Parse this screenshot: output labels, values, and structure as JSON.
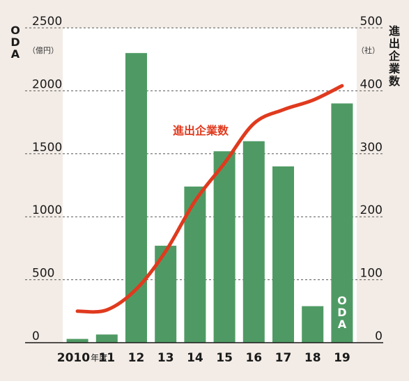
{
  "chart_data": {
    "type": "bar",
    "categories": [
      "2010",
      "11",
      "12",
      "13",
      "14",
      "15",
      "16",
      "17",
      "18",
      "19"
    ],
    "first_category_suffix": "年度",
    "series": [
      {
        "name": "ODA",
        "type": "bar",
        "axis": "left",
        "color": "#4f9a64",
        "values": [
          30,
          65,
          2300,
          770,
          1240,
          1520,
          1600,
          1400,
          290,
          1900
        ]
      },
      {
        "name": "進出企業数",
        "type": "line",
        "axis": "right",
        "color": "#e03a1e",
        "values": [
          50,
          52,
          85,
          145,
          225,
          285,
          348,
          370,
          385,
          408
        ]
      }
    ],
    "left_axis": {
      "label": "ODA",
      "unit": "（億円）",
      "ticks": [
        "0",
        "500",
        "1000",
        "1500",
        "2000",
        "2500"
      ],
      "ylim": [
        0,
        2500
      ]
    },
    "right_axis": {
      "label": "進出企業数",
      "unit": "（社）",
      "ticks": [
        "0",
        "100",
        "200",
        "300",
        "400",
        "500"
      ],
      "ylim": [
        0,
        500
      ]
    },
    "grid": "horizontal dashed",
    "title": "",
    "xlabel": "",
    "ylabel": ""
  }
}
